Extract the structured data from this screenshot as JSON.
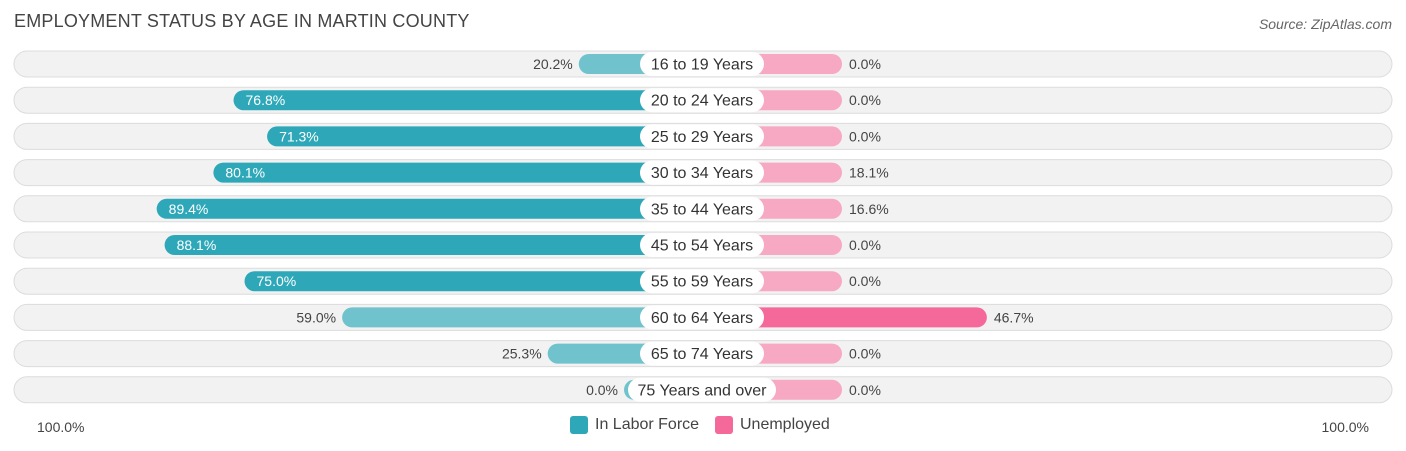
{
  "header": {
    "title": "EMPLOYMENT STATUS BY AGE IN MARTIN COUNTY",
    "source": "Source: ZipAtlas.com"
  },
  "legend": {
    "labor_force": "In Labor Force",
    "unemployed": "Unemployed"
  },
  "axis": {
    "left_label": "100.0%",
    "right_label": "100.0%"
  },
  "colors": {
    "labor_force_strong": "#2ea8b8",
    "labor_force_light": "#70c3cd",
    "unemployed_strong": "#f5699a",
    "unemployed_light": "#f7a8c2",
    "row_bg": "#f2f2f2",
    "row_border": "#dcdcdc"
  },
  "chart_data": {
    "type": "bar",
    "orientation": "horizontal-diverging",
    "title": "EMPLOYMENT STATUS BY AGE IN MARTIN COUNTY",
    "categories": [
      "16 to 19 Years",
      "20 to 24 Years",
      "25 to 29 Years",
      "30 to 34 Years",
      "35 to 44 Years",
      "45 to 54 Years",
      "55 to 59 Years",
      "60 to 64 Years",
      "65 to 74 Years",
      "75 Years and over"
    ],
    "series": [
      {
        "name": "In Labor Force",
        "values": [
          20.2,
          76.8,
          71.3,
          80.1,
          89.4,
          88.1,
          75.0,
          59.0,
          25.3,
          0.0
        ],
        "labels": [
          "20.2%",
          "76.8%",
          "71.3%",
          "80.1%",
          "89.4%",
          "88.1%",
          "75.0%",
          "59.0%",
          "25.3%",
          "0.0%"
        ]
      },
      {
        "name": "Unemployed",
        "values": [
          0.0,
          0.0,
          0.0,
          18.1,
          16.6,
          0.0,
          0.0,
          46.7,
          0.0,
          0.0
        ],
        "labels": [
          "0.0%",
          "0.0%",
          "0.0%",
          "18.1%",
          "16.6%",
          "0.0%",
          "0.0%",
          "46.7%",
          "0.0%",
          "0.0%"
        ]
      }
    ],
    "xlim": [
      0,
      100
    ],
    "legend_position": "bottom-center"
  }
}
